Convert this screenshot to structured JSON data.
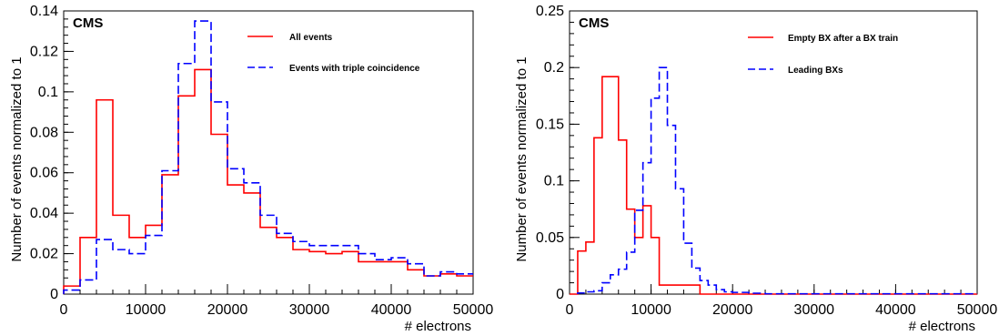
{
  "chart_data": [
    {
      "type": "histogram",
      "label": "CMS",
      "xlabel": "# electrons",
      "ylabel": "Number of events normalized to 1",
      "xlim": [
        0,
        50000
      ],
      "ylim": [
        0,
        0.14
      ],
      "xticks": [
        0,
        10000,
        20000,
        30000,
        40000,
        50000
      ],
      "xtick_labels": [
        "0",
        "10000",
        "20000",
        "30000",
        "40000",
        "50000"
      ],
      "yticks": [
        0,
        0.02,
        0.04,
        0.06,
        0.08,
        0.1,
        0.12,
        0.14
      ],
      "ytick_labels": [
        "0",
        "0.02",
        "0.04",
        "0.06",
        "0.08",
        "0.1",
        "0.12",
        "0.14"
      ],
      "bin_edges": [
        0,
        2000,
        4000,
        6000,
        8000,
        10000,
        12000,
        14000,
        16000,
        18000,
        20000,
        22000,
        24000,
        26000,
        28000,
        30000,
        32000,
        34000,
        36000,
        38000,
        40000,
        42000,
        44000,
        46000,
        48000,
        50000
      ],
      "legend_position": "top-right",
      "series": [
        {
          "name": "All events",
          "color": "#ff0000",
          "dash": "solid",
          "values": [
            0.004,
            0.028,
            0.096,
            0.039,
            0.028,
            0.034,
            0.059,
            0.098,
            0.111,
            0.079,
            0.054,
            0.05,
            0.033,
            0.028,
            0.022,
            0.021,
            0.02,
            0.021,
            0.016,
            0.016,
            0.016,
            0.012,
            0.009,
            0.01,
            0.009
          ]
        },
        {
          "name": "Events with triple coincidence",
          "color": "#0000ff",
          "dash": "dashed",
          "values": [
            0.002,
            0.007,
            0.027,
            0.022,
            0.02,
            0.029,
            0.061,
            0.114,
            0.135,
            0.095,
            0.062,
            0.055,
            0.039,
            0.03,
            0.026,
            0.024,
            0.024,
            0.024,
            0.02,
            0.017,
            0.018,
            0.015,
            0.009,
            0.011,
            0.01
          ]
        }
      ]
    },
    {
      "type": "histogram",
      "label": "CMS",
      "xlabel": "# electrons",
      "ylabel": "Number of events normalized to 1",
      "xlim": [
        0,
        50000
      ],
      "ylim": [
        0,
        0.25
      ],
      "xticks": [
        0,
        10000,
        20000,
        30000,
        40000,
        50000
      ],
      "xtick_labels": [
        "0",
        "10000",
        "20000",
        "30000",
        "40000",
        "50000"
      ],
      "yticks": [
        0,
        0.05,
        0.1,
        0.15,
        0.2,
        0.25
      ],
      "ytick_labels": [
        "0",
        "0.05",
        "0.1",
        "0.15",
        "0.2",
        "0.25"
      ],
      "legend_position": "top-right",
      "series": [
        {
          "name": "Empty BX after a BX train",
          "color": "#ff0000",
          "dash": "solid",
          "bin_edges": [
            0,
            1000,
            2000,
            3000,
            4000,
            6000,
            7000,
            8000,
            9000,
            10000,
            11000,
            12000,
            16000,
            50000
          ],
          "values": [
            0.0,
            0.038,
            0.046,
            0.138,
            0.192,
            0.136,
            0.075,
            0.05,
            0.078,
            0.05,
            0.008,
            0.008,
            0.0
          ]
        },
        {
          "name": "Leading BXs",
          "color": "#0000ff",
          "dash": "dashed",
          "bin_edges": [
            1000,
            2000,
            3000,
            4000,
            5000,
            6000,
            7000,
            8000,
            9000,
            10000,
            11000,
            12000,
            13000,
            14000,
            15000,
            16000,
            17000,
            18000,
            19000,
            20000,
            22000,
            24000,
            50000
          ],
          "values": [
            0.001,
            0.002,
            0.003,
            0.01,
            0.017,
            0.022,
            0.037,
            0.074,
            0.116,
            0.173,
            0.2,
            0.149,
            0.093,
            0.045,
            0.023,
            0.012,
            0.008,
            0.004,
            0.002,
            0.0015,
            0.0008,
            0.0003
          ]
        }
      ]
    }
  ]
}
